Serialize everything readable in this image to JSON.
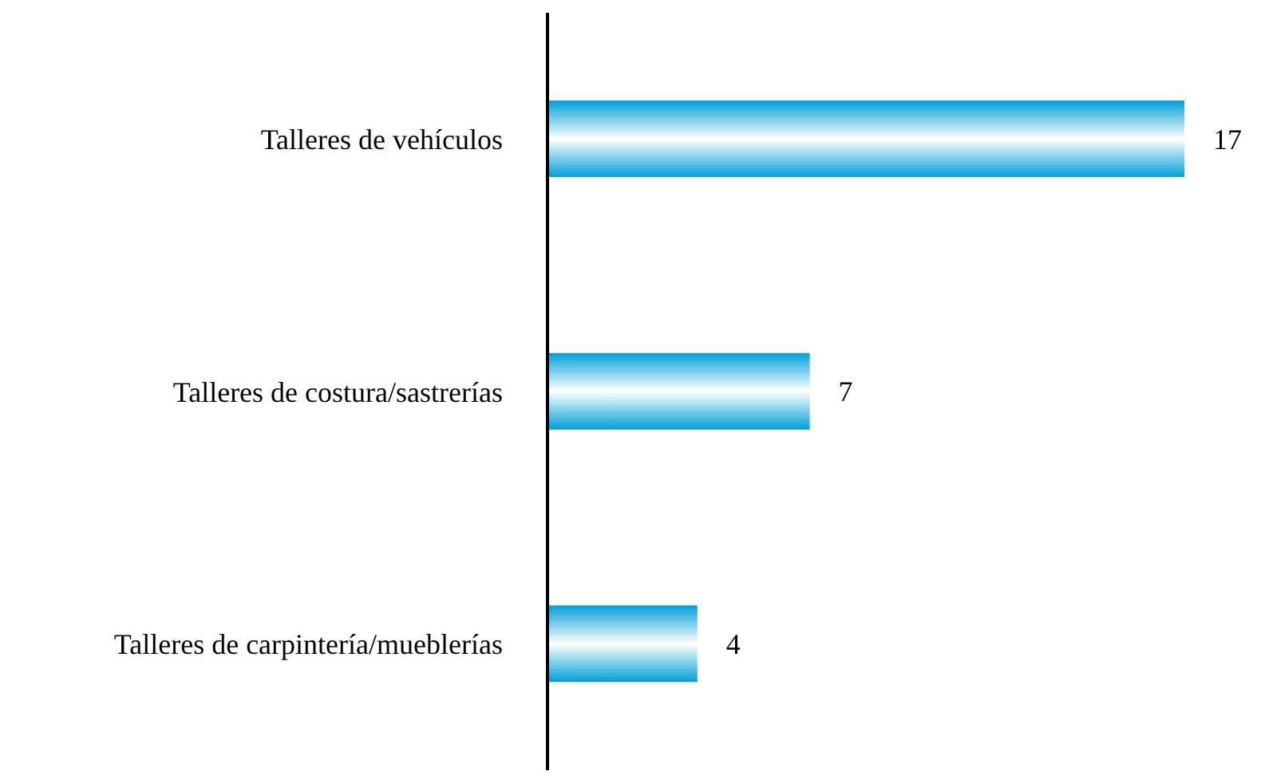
{
  "chart_data": {
    "type": "bar",
    "orientation": "horizontal",
    "categories": [
      "Talleres de vehículos",
      "Talleres de costura/sastrerías",
      "Talleres de carpintería/mueblerías"
    ],
    "values": [
      17,
      7,
      4
    ],
    "color": "#00a0d8",
    "data_labels": true
  }
}
